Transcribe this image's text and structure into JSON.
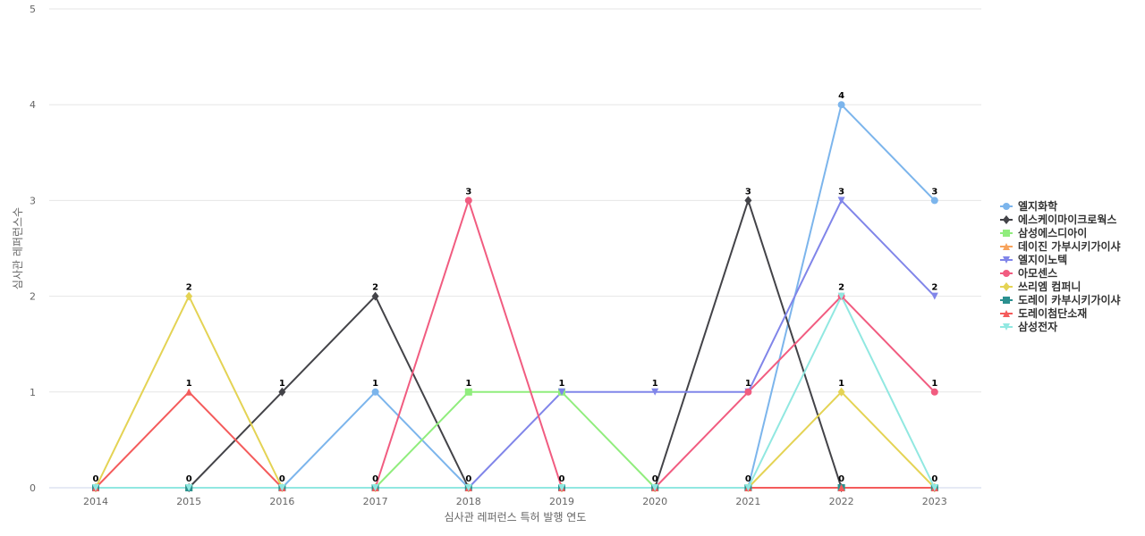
{
  "chart_data": {
    "type": "line",
    "title": "",
    "xlabel": "심사관 레퍼런스 특허 발행 연도",
    "ylabel": "심사관 레퍼런스수",
    "ylim": [
      0,
      5
    ],
    "yticks": [
      "0",
      "1",
      "2",
      "3",
      "4",
      "5"
    ],
    "categories": [
      "2014",
      "2015",
      "2016",
      "2017",
      "2018",
      "2019",
      "2020",
      "2021",
      "2022",
      "2023"
    ],
    "grid": true,
    "legend_position": "right",
    "series": [
      {
        "name": "엘지화학",
        "color": "#7cb5ec",
        "marker": "circle",
        "values": [
          0,
          0,
          0,
          1,
          0,
          0,
          0,
          0,
          4,
          3
        ]
      },
      {
        "name": "에스케이마이크로웍스",
        "color": "#434348",
        "marker": "diamond",
        "values": [
          0,
          0,
          1,
          2,
          0,
          0,
          0,
          3,
          0,
          0
        ]
      },
      {
        "name": "삼성에스디아이",
        "color": "#90ed7d",
        "marker": "square",
        "values": [
          0,
          0,
          0,
          0,
          1,
          1,
          0,
          0,
          0,
          0
        ]
      },
      {
        "name": "데이진 가부시키가이샤",
        "color": "#f7a35c",
        "marker": "triangle",
        "values": [
          0,
          0,
          0,
          0,
          0,
          0,
          0,
          0,
          0,
          0
        ]
      },
      {
        "name": "엘지이노텍",
        "color": "#8085e9",
        "marker": "triangle-down",
        "values": [
          0,
          0,
          0,
          0,
          0,
          1,
          1,
          1,
          3,
          2
        ]
      },
      {
        "name": "아모센스",
        "color": "#f15c80",
        "marker": "circle",
        "values": [
          0,
          0,
          0,
          0,
          3,
          0,
          0,
          1,
          2,
          1
        ]
      },
      {
        "name": "쓰리엠 컴퍼니",
        "color": "#e4d354",
        "marker": "diamond",
        "values": [
          0,
          2,
          0,
          0,
          0,
          0,
          0,
          0,
          1,
          0
        ]
      },
      {
        "name": "도레이 카부시키가이샤",
        "color": "#2b908f",
        "marker": "square",
        "values": [
          0,
          0,
          0,
          0,
          0,
          0,
          0,
          0,
          0,
          0
        ]
      },
      {
        "name": "도레이첨단소재",
        "color": "#f45b5b",
        "marker": "triangle",
        "values": [
          0,
          1,
          0,
          0,
          0,
          0,
          0,
          0,
          0,
          0
        ]
      },
      {
        "name": "삼성전자",
        "color": "#91e8e1",
        "marker": "triangle-down",
        "values": [
          0,
          0,
          0,
          0,
          0,
          0,
          0,
          0,
          2,
          0
        ]
      }
    ]
  }
}
